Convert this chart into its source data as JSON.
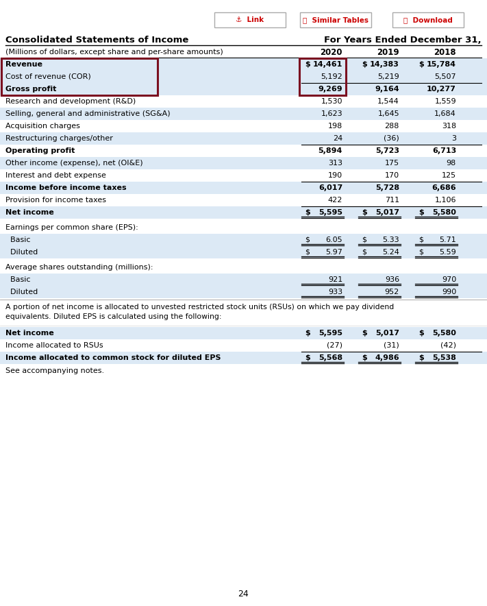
{
  "title": "Consolidated Statements of Income",
  "subtitle": "For Years Ended December 31,",
  "col_header": "(Millions of dollars, except share and per-share amounts)",
  "years": [
    "2020",
    "2019",
    "2018"
  ],
  "bg_color": "#ffffff",
  "light_blue": "#dce9f5",
  "dark_red": "#7b1020",
  "red_btn": "#cc0000",
  "rows": [
    {
      "label": "Revenue",
      "v0": "$ 14,461",
      "v1": "$ 14,383",
      "v2": "$ 15,784",
      "bold": true,
      "bg": "light",
      "highlight": true,
      "dollar0": true,
      "dollar1": true,
      "dollar2": true
    },
    {
      "label": "Cost of revenue (COR)",
      "v0": "5,192",
      "v1": "5,219",
      "v2": "5,507",
      "bold": false,
      "bg": "light",
      "highlight": true
    },
    {
      "label": "Gross profit",
      "v0": "9,269",
      "v1": "9,164",
      "v2": "10,277",
      "bold": true,
      "bg": "light",
      "highlight": true,
      "top_line": true
    },
    {
      "label": "Research and development (R&D)",
      "v0": "1,530",
      "v1": "1,544",
      "v2": "1,559",
      "bold": false,
      "bg": "white"
    },
    {
      "label": "Selling, general and administrative (SG&A)",
      "v0": "1,623",
      "v1": "1,645",
      "v2": "1,684",
      "bold": false,
      "bg": "light"
    },
    {
      "label": "Acquisition charges",
      "v0": "198",
      "v1": "288",
      "v2": "318",
      "bold": false,
      "bg": "white"
    },
    {
      "label": "Restructuring charges/other",
      "v0": "24",
      "v1": "(36)",
      "v2": "3",
      "bold": false,
      "bg": "light"
    },
    {
      "label": "Operating profit",
      "v0": "5,894",
      "v1": "5,723",
      "v2": "6,713",
      "bold": true,
      "bg": "white",
      "top_line": true
    },
    {
      "label": "Other income (expense), net (OI&E)",
      "v0": "313",
      "v1": "175",
      "v2": "98",
      "bold": false,
      "bg": "light"
    },
    {
      "label": "Interest and debt expense",
      "v0": "190",
      "v1": "170",
      "v2": "125",
      "bold": false,
      "bg": "white"
    },
    {
      "label": "Income before income taxes",
      "v0": "6,017",
      "v1": "5,728",
      "v2": "6,686",
      "bold": true,
      "bg": "light",
      "top_line": true
    },
    {
      "label": "Provision for income taxes",
      "v0": "422",
      "v1": "711",
      "v2": "1,106",
      "bold": false,
      "bg": "white"
    },
    {
      "label": "Net income",
      "v0": "$ 5,595",
      "v1": "$ 5,017",
      "v2": "$ 5,580",
      "bold": true,
      "bg": "light",
      "top_line": true,
      "dollar0": true,
      "dollar1": true,
      "dollar2": true,
      "dbl_under": true
    }
  ],
  "eps_header": "Earnings per common share (EPS):",
  "eps_rows": [
    {
      "label": "  Basic",
      "v0": "$ 6.05",
      "v1": "$ 5.33",
      "v2": "$ 5.71",
      "bold": false,
      "bg": "light",
      "dollar0": true,
      "dollar1": true,
      "dollar2": true,
      "dbl_under": true
    },
    {
      "label": "  Diluted",
      "v0": "$ 5.97",
      "v1": "$ 5.24",
      "v2": "$ 5.59",
      "bold": false,
      "bg": "light",
      "dollar0": true,
      "dollar1": true,
      "dollar2": true,
      "dbl_under": true
    }
  ],
  "shares_header": "Average shares outstanding (millions):",
  "shares_rows": [
    {
      "label": "  Basic",
      "v0": "921",
      "v1": "936",
      "v2": "970",
      "bold": false,
      "bg": "light",
      "dbl_under": true
    },
    {
      "label": "  Diluted",
      "v0": "933",
      "v1": "952",
      "v2": "990",
      "bold": false,
      "bg": "light",
      "dbl_under": true
    }
  ],
  "note": "A portion of net income is allocated to unvested restricted stock units (RSUs) on which we pay dividend\nequivalents. Diluted EPS is calculated using the following:",
  "bottom_rows": [
    {
      "label": "Net income",
      "v0": "$ 5,595",
      "v1": "$ 5,017",
      "v2": "$ 5,580",
      "bold": true,
      "bg": "light",
      "dollar0": true,
      "dollar1": true,
      "dollar2": true
    },
    {
      "label": "Income allocated to RSUs",
      "v0": "(27)",
      "v1": "(31)",
      "v2": "(42)",
      "bold": false,
      "bg": "white",
      "bot_line": true
    },
    {
      "label": "Income allocated to common stock for diluted EPS",
      "v0": "$ 5,568",
      "v1": "$ 4,986",
      "v2": "$ 5,538",
      "bold": true,
      "bg": "light",
      "dollar0": true,
      "dollar1": true,
      "dollar2": true,
      "dbl_under": true
    }
  ],
  "footer": "See accompanying notes.",
  "page_num": "24"
}
